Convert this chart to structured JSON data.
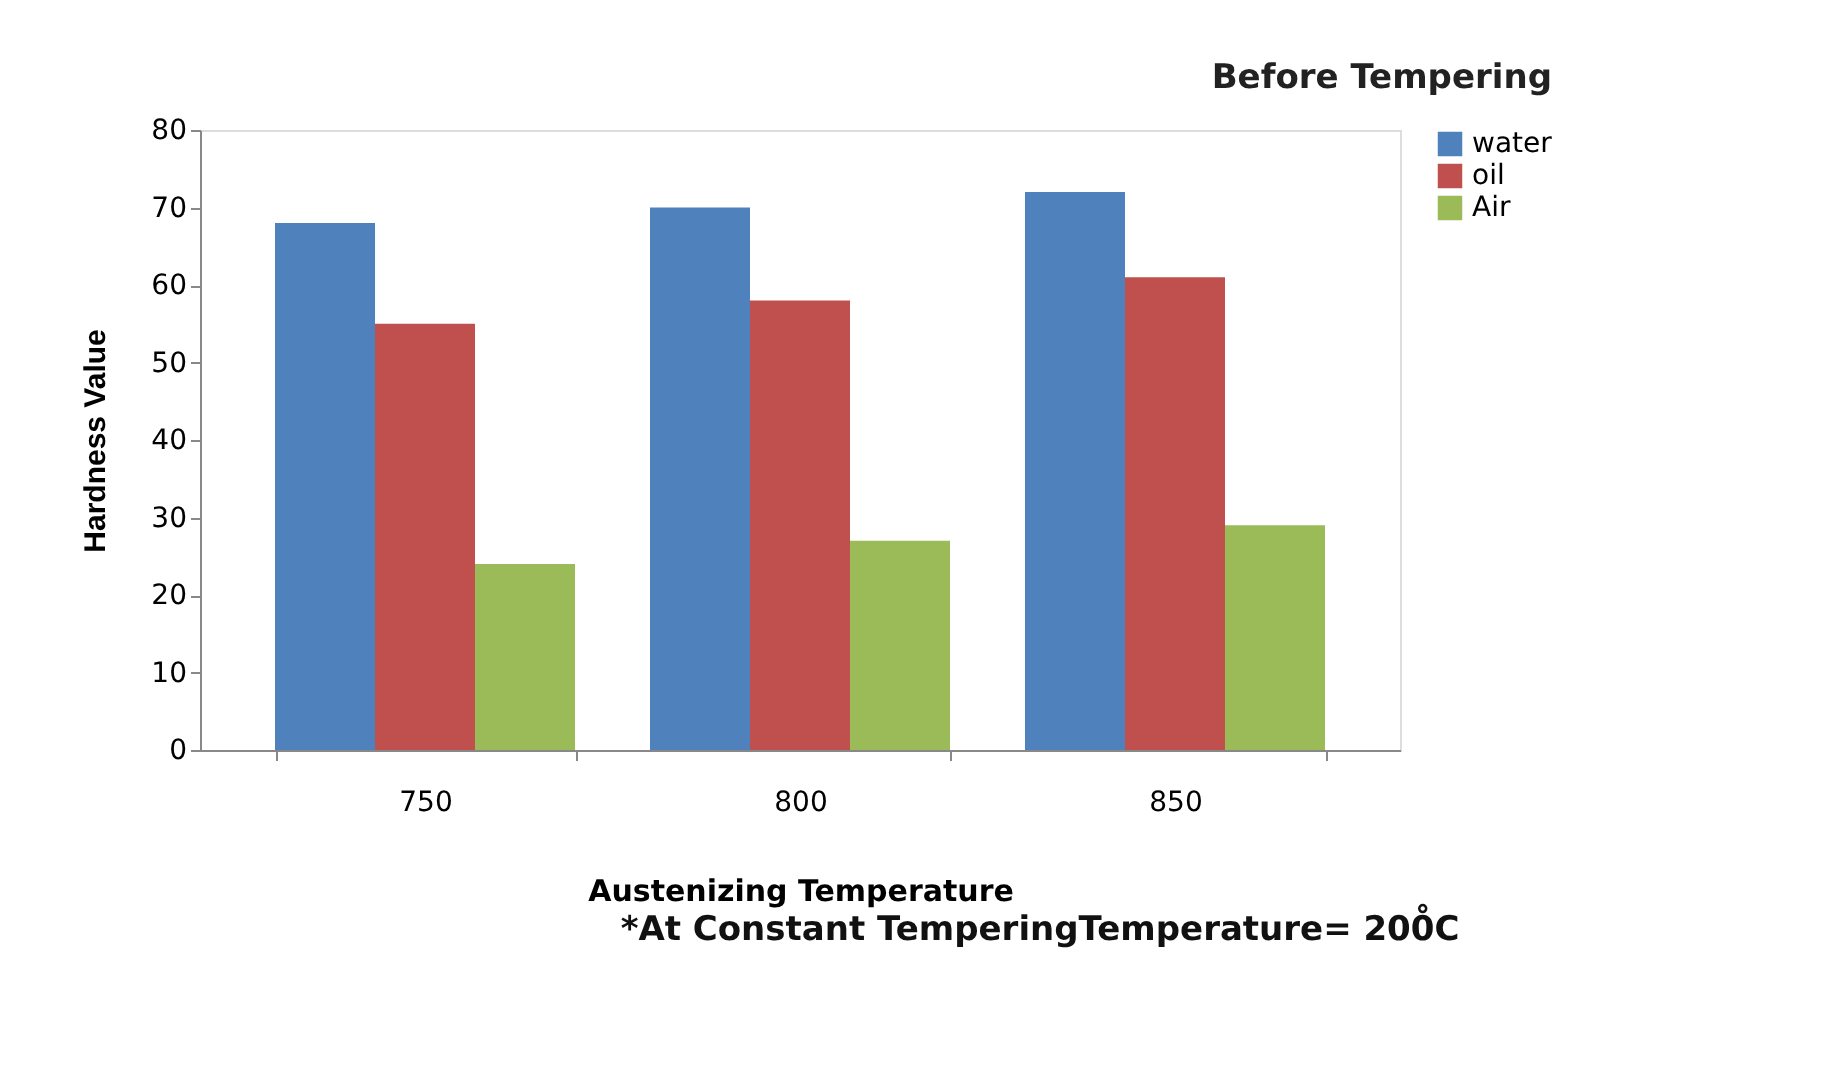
{
  "chart_data": {
    "type": "bar",
    "title": "Before Tempering",
    "xlabel": "Austenizing Temperature",
    "ylabel": "Hardness Value",
    "categories": [
      "750",
      "800",
      "850"
    ],
    "series": [
      {
        "name": "water",
        "color": "#4f81bd",
        "values": [
          68,
          70,
          72
        ]
      },
      {
        "name": "oil",
        "color": "#c0504d",
        "values": [
          55,
          58,
          61
        ]
      },
      {
        "name": "Air",
        "color": "#9bbb59",
        "values": [
          24,
          27,
          29
        ]
      }
    ],
    "ylim": [
      0,
      80
    ],
    "yticks": [
      0,
      10,
      20,
      30,
      40,
      50,
      60,
      70,
      80
    ],
    "grid": false,
    "legend": "right",
    "annotations": [
      "*At Constant TemperingTemperature= 200̊C"
    ]
  }
}
